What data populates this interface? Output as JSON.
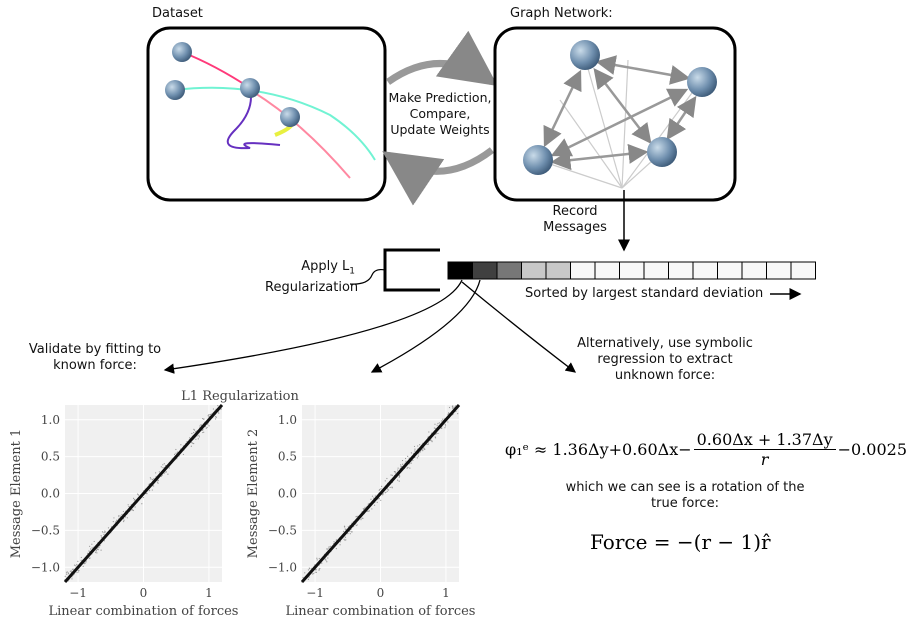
{
  "dataset": {
    "title": "Dataset"
  },
  "graph": {
    "title": "Graph Network:"
  },
  "cycle": {
    "line1": "Make Prediction,",
    "line2": "Compare,",
    "line3": "Update Weights"
  },
  "record": {
    "line1": "Record",
    "line2": "Messages"
  },
  "regularization": {
    "line1": "Apply L",
    "sub": "1",
    "line2": "Regularization"
  },
  "messages": {
    "sorted_label": "Sorted by largest standard deviation",
    "cell_shades": [
      "#000000",
      "#404040",
      "#777777",
      "#c8c8c8",
      "#c8c8c8",
      "#f8f8f8",
      "#f8f8f8",
      "#f8f8f8",
      "#f8f8f8",
      "#f8f8f8",
      "#f8f8f8",
      "#f8f8f8",
      "#f8f8f8",
      "#f8f8f8",
      "#f8f8f8"
    ]
  },
  "validate": {
    "line1": "Validate by fitting to",
    "line2": "known force:"
  },
  "symbolic": {
    "line1": "Alternatively, use symbolic",
    "line2": "regression to extract",
    "line3": "unknown force:"
  },
  "equation": {
    "lhs": "φ₁ᵉ ≈ 1.36Δy+0.60Δx−",
    "numerator": "0.60Δx + 1.37Δy",
    "denominator": "r",
    "tail": "−0.0025"
  },
  "rotation": {
    "line1": "which we can see is a rotation of the",
    "line2": "true force:"
  },
  "force": {
    "text": "Force = −(r − 1)r̂"
  },
  "chart_data": [
    {
      "type": "scatter",
      "title": "L1 Regularization",
      "xlabel": "Linear combination of forces",
      "ylabel": "Message Element 1",
      "xlim": [
        -1.2,
        1.2
      ],
      "ylim": [
        -1.2,
        1.2
      ],
      "xticks": [
        "−1",
        "0",
        "1"
      ],
      "yticks": [
        "−1.0",
        "−0.5",
        "0.0",
        "0.5",
        "1.0"
      ],
      "fit": {
        "slope": 1,
        "intercept": 0
      },
      "grid": true
    },
    {
      "type": "scatter",
      "xlabel": "Linear combination of forces",
      "ylabel": "Message Element 2",
      "xlim": [
        -1.2,
        1.2
      ],
      "ylim": [
        -1.2,
        1.2
      ],
      "xticks": [
        "−1",
        "0",
        "1"
      ],
      "yticks": [
        "−1.0",
        "−0.5",
        "0.0",
        "0.5",
        "1.0"
      ],
      "fit": {
        "slope": 1,
        "intercept": 0
      },
      "grid": true
    }
  ]
}
